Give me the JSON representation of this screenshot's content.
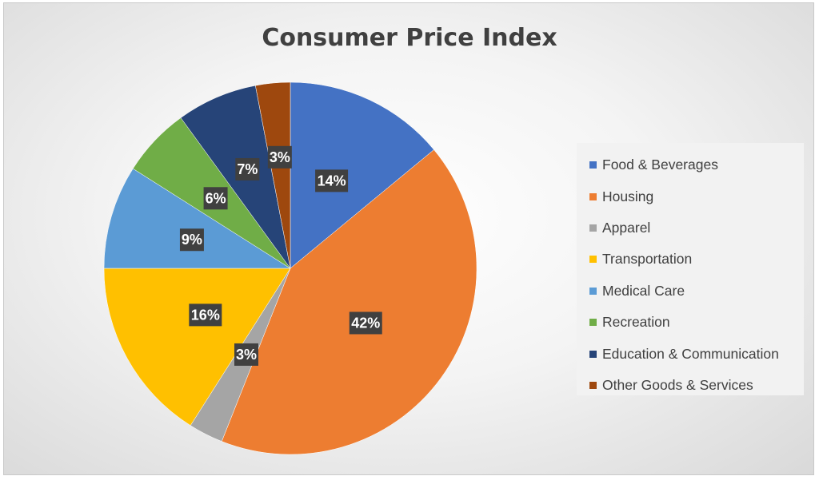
{
  "chart_data": {
    "type": "pie",
    "title": "Consumer Price Index",
    "categories": [
      "Food & Beverages",
      "Housing",
      "Apparel",
      "Transportation",
      "Medical Care",
      "Recreation",
      "Education & Communication",
      "Other Goods & Services"
    ],
    "values": [
      14,
      42,
      3,
      16,
      9,
      6,
      7,
      3
    ],
    "data_labels": [
      "14%",
      "42%",
      "3%",
      "16%",
      "9%",
      "6%",
      "7%",
      "3%"
    ],
    "colors": [
      "#4472C4",
      "#ED7D31",
      "#A5A5A5",
      "#FFC000",
      "#5B9BD5",
      "#70AD47",
      "#264478",
      "#9E480E"
    ],
    "legend_position": "right",
    "label_style": "dark boxes with white bold text"
  }
}
